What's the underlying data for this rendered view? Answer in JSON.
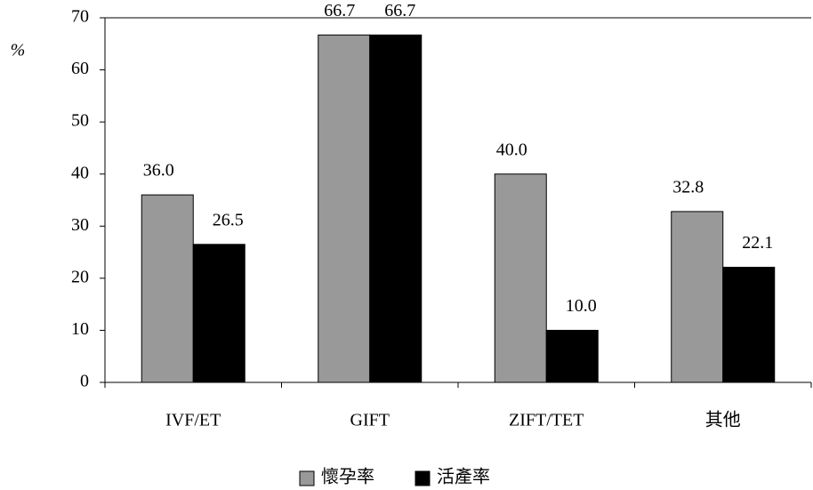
{
  "chart_data": {
    "type": "bar",
    "y_label": "%",
    "categories": [
      "IVF/ET",
      "GIFT",
      "ZIFT/TET",
      "其他"
    ],
    "series": [
      {
        "name": "懷孕率",
        "color": "#999999",
        "values": [
          36.0,
          66.7,
          40.0,
          32.8
        ],
        "value_labels": [
          "36.0",
          "66.7",
          "40.0",
          "32.8"
        ]
      },
      {
        "name": "活產率",
        "color": "#000000",
        "values": [
          26.5,
          66.7,
          10.0,
          22.1
        ],
        "value_labels": [
          "26.5",
          "66.7",
          "10.0",
          "22.1"
        ]
      }
    ],
    "ylim": [
      0,
      70
    ],
    "yticks": [
      0,
      10,
      20,
      30,
      40,
      50,
      60,
      70
    ],
    "legend": "bottom"
  }
}
